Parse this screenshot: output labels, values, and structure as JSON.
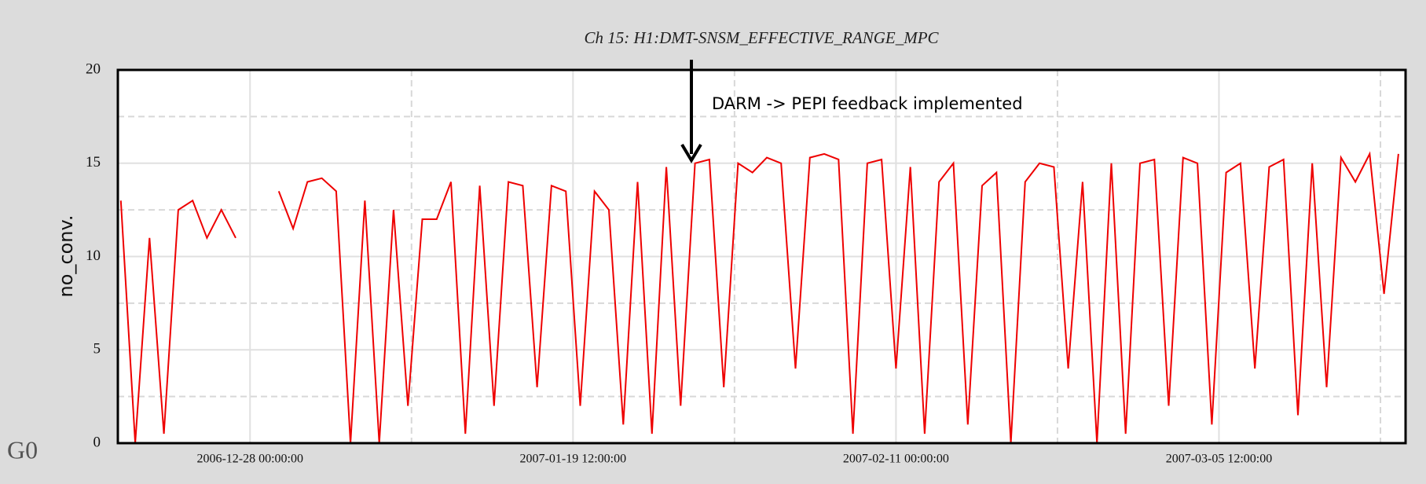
{
  "chart_data": {
    "type": "line",
    "title": "Ch 15: H1:DMT-SNSM_EFFECTIVE_RANGE_MPC",
    "ylabel": "no_conv.",
    "annotation": "DARM -> PEPI feedback implemented",
    "corner_label": "G0",
    "color": "#ee0000",
    "x": [
      "2006-12-19 00:00:00",
      "2006-12-20 00:00:00",
      "2006-12-21 00:00:00",
      "2006-12-22 00:00:00",
      "2006-12-23 00:00:00",
      "2006-12-24 00:00:00",
      "2006-12-25 00:00:00",
      "2006-12-26 00:00:00",
      "2006-12-27 00:00:00",
      "2006-12-28 00:00:00",
      "2006-12-29 00:00:00",
      "2006-12-30 00:00:00",
      "2006-12-31 00:00:00",
      "2007-01-01 00:00:00",
      "2007-01-02 00:00:00",
      "2007-01-03 00:00:00",
      "2007-01-04 00:00:00",
      "2007-01-05 00:00:00",
      "2007-01-06 00:00:00",
      "2007-01-07 00:00:00",
      "2007-01-08 00:00:00",
      "2007-01-09 00:00:00",
      "2007-01-10 00:00:00",
      "2007-01-11 00:00:00",
      "2007-01-12 00:00:00",
      "2007-01-13 00:00:00",
      "2007-01-14 00:00:00",
      "2007-01-15 00:00:00",
      "2007-01-16 00:00:00",
      "2007-01-17 00:00:00",
      "2007-01-18 00:00:00",
      "2007-01-19 00:00:00",
      "2007-01-20 00:00:00",
      "2007-01-21 00:00:00",
      "2007-01-22 00:00:00",
      "2007-01-23 00:00:00",
      "2007-01-24 00:00:00",
      "2007-01-25 00:00:00",
      "2007-01-26 00:00:00",
      "2007-01-27 00:00:00",
      "2007-01-28 00:00:00",
      "2007-01-29 00:00:00",
      "2007-01-30 00:00:00",
      "2007-01-31 00:00:00",
      "2007-02-01 00:00:00",
      "2007-02-02 00:00:00",
      "2007-02-03 00:00:00",
      "2007-02-04 00:00:00",
      "2007-02-05 00:00:00",
      "2007-02-06 00:00:00",
      "2007-02-07 00:00:00",
      "2007-02-08 00:00:00",
      "2007-02-09 00:00:00",
      "2007-02-10 00:00:00",
      "2007-02-11 00:00:00",
      "2007-02-12 00:00:00",
      "2007-02-13 00:00:00",
      "2007-02-14 00:00:00",
      "2007-02-15 00:00:00",
      "2007-02-16 00:00:00",
      "2007-02-17 00:00:00",
      "2007-02-18 00:00:00",
      "2007-02-19 00:00:00",
      "2007-02-20 00:00:00",
      "2007-02-21 00:00:00",
      "2007-02-22 00:00:00",
      "2007-02-23 00:00:00",
      "2007-02-24 00:00:00",
      "2007-02-25 00:00:00",
      "2007-02-26 00:00:00",
      "2007-02-27 00:00:00",
      "2007-02-28 00:00:00",
      "2007-03-01 00:00:00",
      "2007-03-02 00:00:00",
      "2007-03-03 00:00:00",
      "2007-03-04 00:00:00",
      "2007-03-05 00:00:00",
      "2007-03-06 00:00:00",
      "2007-03-07 00:00:00",
      "2007-03-08 00:00:00",
      "2007-03-09 00:00:00",
      "2007-03-10 00:00:00",
      "2007-03-11 00:00:00",
      "2007-03-12 00:00:00",
      "2007-03-13 00:00:00",
      "2007-03-14 00:00:00",
      "2007-03-15 00:00:00",
      "2007-03-16 00:00:00",
      "2007-03-17 00:00:00",
      "2007-03-18 00:00:00"
    ],
    "values": [
      13,
      0,
      11,
      0.5,
      12.5,
      13,
      11,
      12.5,
      11,
      null,
      null,
      13.5,
      11.5,
      14,
      14.2,
      13.5,
      0,
      13,
      0,
      12.5,
      2,
      12,
      12,
      14,
      0.5,
      13.8,
      2,
      14,
      13.8,
      3,
      13.8,
      13.5,
      2,
      13.5,
      12.5,
      1,
      14,
      0.5,
      14.8,
      2,
      15,
      15.2,
      3,
      15,
      14.5,
      15.3,
      15,
      4,
      15.3,
      15.5,
      15.2,
      0.5,
      15,
      15.2,
      4,
      14.8,
      0.5,
      14,
      15,
      1,
      13.8,
      14.5,
      0,
      14,
      15,
      14.8,
      4,
      14,
      0,
      15,
      0.5,
      15,
      15.2,
      2,
      15.3,
      15,
      1,
      14.5,
      15,
      4,
      14.8,
      15.2,
      1.5,
      15,
      3,
      15.3,
      14,
      15.5,
      8,
      15.5
    ],
    "xlim": [
      "2006-12-18 19:00:00",
      "2007-03-18 12:00:00"
    ],
    "xticks": [
      "2006-12-28 00:00:00",
      "2007-01-19 12:00:00",
      "2007-02-11 00:00:00",
      "2007-03-05 12:00:00"
    ],
    "xminorticks": [
      "2007-01-08 06:00:00",
      "2007-01-30 18:00:00",
      "2007-02-22 06:00:00",
      "2007-03-16 18:00:00"
    ],
    "ylim": [
      0,
      20
    ],
    "yticks": [
      0,
      5,
      10,
      15,
      20
    ],
    "yminorticks": [
      2.5,
      7.5,
      12.5,
      17.5
    ],
    "grid": true
  }
}
